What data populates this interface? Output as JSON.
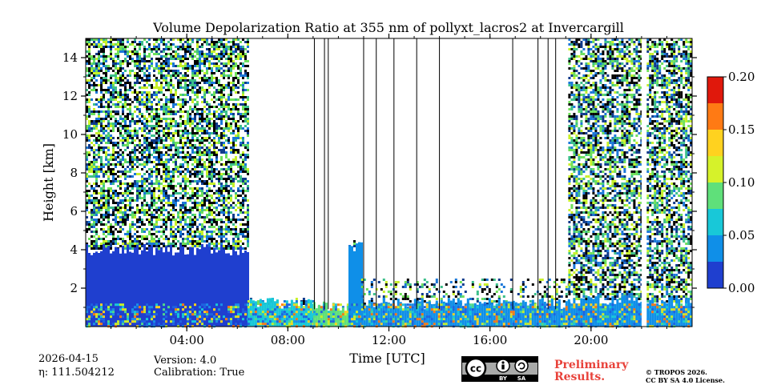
{
  "chart_data": {
    "type": "heatmap",
    "title": "Volume Depolarization Ratio at 355 nm of pollyxt_lacros2 at Invercargill",
    "xlabel": "Time [UTC]",
    "ylabel": "Height [km]",
    "xlim_hours": [
      0,
      24
    ],
    "ylim_km": [
      0,
      15
    ],
    "x_ticks": [
      {
        "hour": 4,
        "label": "04:00"
      },
      {
        "hour": 8,
        "label": "08:00"
      },
      {
        "hour": 12,
        "label": "12:00"
      },
      {
        "hour": 16,
        "label": "16:00"
      },
      {
        "hour": 20,
        "label": "20:00"
      }
    ],
    "y_ticks": [
      {
        "km": 2,
        "label": "2"
      },
      {
        "km": 4,
        "label": "4"
      },
      {
        "km": 6,
        "label": "6"
      },
      {
        "km": 8,
        "label": "8"
      },
      {
        "km": 10,
        "label": "10"
      },
      {
        "km": 12,
        "label": "12"
      },
      {
        "km": 14,
        "label": "14"
      }
    ],
    "colorbar": {
      "min": 0.0,
      "max": 0.2,
      "ticks": [
        "0.00",
        "0.05",
        "0.10",
        "0.15",
        "0.20"
      ],
      "colors": [
        "#1f3fcf",
        "#0f8fe8",
        "#18c8d8",
        "#5fe07a",
        "#d6f22a",
        "#ffd21f",
        "#ff7a14",
        "#e0180c"
      ]
    },
    "segments": [
      {
        "start_hour": 0.0,
        "end_hour": 6.4,
        "noise_top_km": 15,
        "aerosol_top_km": 4.0,
        "value": 0.02
      },
      {
        "start_hour": 6.4,
        "end_hour": 9.0,
        "noise_top_km": 1.5,
        "aerosol_top_km": 1.2,
        "value": 0.07
      },
      {
        "start_hour": 9.0,
        "end_hour": 10.4,
        "noise_top_km": 1.2,
        "aerosol_top_km": 1.0,
        "value": 0.09
      },
      {
        "start_hour": 10.4,
        "end_hour": 10.9,
        "noise_top_km": 4.5,
        "aerosol_top_km": 4.2,
        "value": 0.03
      },
      {
        "start_hour": 10.9,
        "end_hour": 19.1,
        "noise_top_km": 2.5,
        "aerosol_top_km": 1.2,
        "value": 0.04
      },
      {
        "start_hour": 19.1,
        "end_hour": 22.0,
        "noise_top_km": 15,
        "aerosol_top_km": 1.4,
        "value": 0.03
      },
      {
        "start_hour": 22.2,
        "end_hour": 24.0,
        "noise_top_km": 15,
        "aerosol_top_km": 1.3,
        "value": 0.03
      }
    ],
    "gaps_hours": [
      9.05,
      9.45,
      9.6,
      11.0,
      11.5,
      12.2,
      13.1,
      14.0,
      16.9,
      17.9,
      18.3,
      18.6,
      22.05
    ]
  },
  "footer": {
    "date": "2026-04-15",
    "eta": "η: 111.504212",
    "version": "Version: 4.0",
    "calibration": "Calibration: True",
    "preliminary_line1": "Preliminary",
    "preliminary_line2": "Results.",
    "copyright_line1": "© TROPOS 2026.",
    "copyright_line2": "CC BY SA 4.0 License.",
    "cc_label": "cc",
    "by_label": "BY",
    "sa_label": "SA"
  }
}
